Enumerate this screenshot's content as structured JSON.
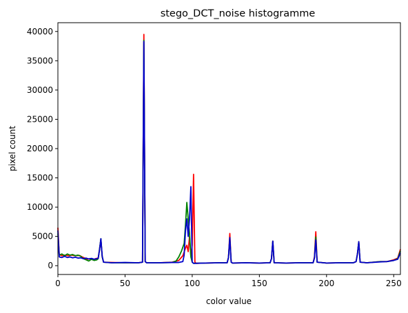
{
  "chart_data": {
    "type": "line",
    "title": "stego_DCT_noise histogramme",
    "xlabel": "color value",
    "ylabel": "pixel count",
    "xlim": [
      0,
      255
    ],
    "ylim": [
      -1500,
      41500
    ],
    "xticks": [
      0,
      50,
      100,
      150,
      200,
      250
    ],
    "yticks": [
      0,
      5000,
      10000,
      15000,
      20000,
      25000,
      30000,
      35000,
      40000
    ],
    "grid": false,
    "series": [
      {
        "color": "#ff0000",
        "points": [
          [
            0,
            6500
          ],
          [
            1,
            1900
          ],
          [
            3,
            1700
          ],
          [
            5,
            1800
          ],
          [
            8,
            1700
          ],
          [
            10,
            1800
          ],
          [
            13,
            1700
          ],
          [
            16,
            1750
          ],
          [
            18,
            1500
          ],
          [
            20,
            1300
          ],
          [
            22,
            1100
          ],
          [
            24,
            1200
          ],
          [
            26,
            1000
          ],
          [
            28,
            1200
          ],
          [
            30,
            1300
          ],
          [
            31,
            2800
          ],
          [
            32,
            4500
          ],
          [
            33,
            1500
          ],
          [
            34,
            600
          ],
          [
            40,
            550
          ],
          [
            50,
            500
          ],
          [
            60,
            500
          ],
          [
            63,
            600
          ],
          [
            64,
            39500
          ],
          [
            65,
            700
          ],
          [
            66,
            500
          ],
          [
            75,
            500
          ],
          [
            85,
            600
          ],
          [
            90,
            900
          ],
          [
            93,
            1700
          ],
          [
            95,
            3000
          ],
          [
            96,
            3500
          ],
          [
            97,
            2400
          ],
          [
            98,
            5000
          ],
          [
            99,
            1600
          ],
          [
            100,
            3500
          ],
          [
            101,
            15600
          ],
          [
            102,
            600
          ],
          [
            103,
            400
          ],
          [
            110,
            450
          ],
          [
            120,
            500
          ],
          [
            126,
            500
          ],
          [
            127,
            1400
          ],
          [
            128,
            5500
          ],
          [
            129,
            600
          ],
          [
            130,
            450
          ],
          [
            140,
            500
          ],
          [
            150,
            450
          ],
          [
            158,
            500
          ],
          [
            159,
            1200
          ],
          [
            160,
            4200
          ],
          [
            161,
            500
          ],
          [
            170,
            450
          ],
          [
            180,
            500
          ],
          [
            190,
            500
          ],
          [
            191,
            1500
          ],
          [
            192,
            5800
          ],
          [
            193,
            600
          ],
          [
            200,
            450
          ],
          [
            210,
            500
          ],
          [
            220,
            500
          ],
          [
            222,
            700
          ],
          [
            223,
            2000
          ],
          [
            224,
            4100
          ],
          [
            225,
            600
          ],
          [
            230,
            500
          ],
          [
            240,
            700
          ],
          [
            245,
            700
          ],
          [
            250,
            1000
          ],
          [
            253,
            1300
          ],
          [
            255,
            2800
          ]
        ]
      },
      {
        "color": "#008000",
        "points": [
          [
            0,
            5500
          ],
          [
            1,
            1800
          ],
          [
            3,
            2000
          ],
          [
            5,
            1700
          ],
          [
            7,
            2000
          ],
          [
            9,
            1800
          ],
          [
            11,
            1900
          ],
          [
            13,
            1700
          ],
          [
            15,
            1800
          ],
          [
            17,
            1600
          ],
          [
            19,
            1200
          ],
          [
            21,
            1000
          ],
          [
            23,
            800
          ],
          [
            25,
            1100
          ],
          [
            27,
            900
          ],
          [
            29,
            1000
          ],
          [
            30,
            1200
          ],
          [
            31,
            2800
          ],
          [
            32,
            4600
          ],
          [
            33,
            1500
          ],
          [
            34,
            600
          ],
          [
            40,
            500
          ],
          [
            50,
            500
          ],
          [
            60,
            500
          ],
          [
            63,
            600
          ],
          [
            64,
            38500
          ],
          [
            65,
            700
          ],
          [
            66,
            500
          ],
          [
            75,
            500
          ],
          [
            85,
            550
          ],
          [
            88,
            800
          ],
          [
            90,
            1500
          ],
          [
            92,
            2500
          ],
          [
            94,
            3800
          ],
          [
            95,
            7000
          ],
          [
            96,
            10800
          ],
          [
            97,
            8000
          ],
          [
            98,
            5500
          ],
          [
            99,
            1500
          ],
          [
            100,
            600
          ],
          [
            101,
            400
          ],
          [
            110,
            450
          ],
          [
            120,
            500
          ],
          [
            126,
            500
          ],
          [
            127,
            1400
          ],
          [
            128,
            4800
          ],
          [
            129,
            600
          ],
          [
            130,
            450
          ],
          [
            140,
            500
          ],
          [
            150,
            450
          ],
          [
            158,
            500
          ],
          [
            159,
            1200
          ],
          [
            160,
            4200
          ],
          [
            161,
            500
          ],
          [
            170,
            450
          ],
          [
            180,
            500
          ],
          [
            190,
            500
          ],
          [
            191,
            1300
          ],
          [
            192,
            4900
          ],
          [
            193,
            600
          ],
          [
            200,
            450
          ],
          [
            210,
            500
          ],
          [
            220,
            500
          ],
          [
            222,
            700
          ],
          [
            223,
            2000
          ],
          [
            224,
            4100
          ],
          [
            225,
            600
          ],
          [
            230,
            500
          ],
          [
            240,
            700
          ],
          [
            245,
            700
          ],
          [
            250,
            900
          ],
          [
            253,
            1200
          ],
          [
            255,
            2500
          ]
        ]
      },
      {
        "color": "#0000cc",
        "points": [
          [
            0,
            6000
          ],
          [
            1,
            1500
          ],
          [
            3,
            1400
          ],
          [
            5,
            1600
          ],
          [
            7,
            1400
          ],
          [
            9,
            1500
          ],
          [
            11,
            1350
          ],
          [
            13,
            1450
          ],
          [
            15,
            1300
          ],
          [
            17,
            1350
          ],
          [
            19,
            1200
          ],
          [
            21,
            1300
          ],
          [
            23,
            1150
          ],
          [
            25,
            1250
          ],
          [
            27,
            1100
          ],
          [
            29,
            1200
          ],
          [
            30,
            1250
          ],
          [
            31,
            2700
          ],
          [
            32,
            4600
          ],
          [
            33,
            1600
          ],
          [
            34,
            600
          ],
          [
            40,
            500
          ],
          [
            50,
            550
          ],
          [
            60,
            500
          ],
          [
            63,
            600
          ],
          [
            64,
            38300
          ],
          [
            65,
            700
          ],
          [
            66,
            500
          ],
          [
            75,
            500
          ],
          [
            85,
            550
          ],
          [
            90,
            550
          ],
          [
            93,
            700
          ],
          [
            94,
            1800
          ],
          [
            95,
            6000
          ],
          [
            96,
            8000
          ],
          [
            97,
            5000
          ],
          [
            98,
            8000
          ],
          [
            99,
            13500
          ],
          [
            100,
            600
          ],
          [
            101,
            400
          ],
          [
            110,
            450
          ],
          [
            120,
            500
          ],
          [
            126,
            500
          ],
          [
            127,
            1400
          ],
          [
            128,
            4800
          ],
          [
            129,
            600
          ],
          [
            130,
            450
          ],
          [
            140,
            500
          ],
          [
            150,
            450
          ],
          [
            158,
            500
          ],
          [
            159,
            1200
          ],
          [
            160,
            4200
          ],
          [
            161,
            500
          ],
          [
            170,
            450
          ],
          [
            180,
            500
          ],
          [
            190,
            500
          ],
          [
            191,
            1300
          ],
          [
            192,
            4400
          ],
          [
            193,
            600
          ],
          [
            200,
            450
          ],
          [
            210,
            500
          ],
          [
            220,
            500
          ],
          [
            222,
            700
          ],
          [
            223,
            2000
          ],
          [
            224,
            4100
          ],
          [
            225,
            600
          ],
          [
            230,
            500
          ],
          [
            240,
            650
          ],
          [
            245,
            700
          ],
          [
            250,
            900
          ],
          [
            253,
            1100
          ],
          [
            255,
            2200
          ]
        ]
      }
    ]
  }
}
